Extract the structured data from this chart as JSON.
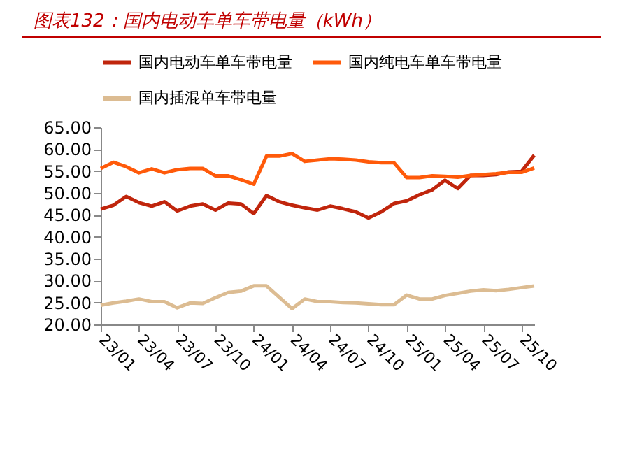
{
  "chart_data": {
    "type": "line",
    "title": "图表132：国内电动车单车带电量（kWh）",
    "categories": [
      "23/01",
      null,
      null,
      "23/04",
      null,
      null,
      "23/07",
      null,
      null,
      "23/10",
      null,
      null,
      "24/01",
      null,
      null,
      "24/04",
      null,
      null,
      "24/07",
      null,
      null,
      "24/10",
      null,
      null,
      "25/01",
      null,
      null,
      "25/04",
      null,
      null,
      "25/07",
      null,
      null,
      "25/10",
      null
    ],
    "series": [
      {
        "name": "国内电动车单车带电量",
        "color": "#c0250c",
        "values": [
          46.3,
          47.2,
          49.2,
          47.8,
          47.0,
          48.0,
          45.9,
          47.0,
          47.5,
          46.1,
          47.7,
          47.5,
          45.3,
          49.4,
          48.0,
          47.2,
          46.6,
          46.1,
          47.0,
          46.4,
          45.7,
          44.3,
          45.7,
          47.6,
          48.2,
          49.6,
          50.7,
          52.9,
          51.0,
          54.0,
          54.0,
          54.2,
          54.8,
          54.9,
          58.6
        ]
      },
      {
        "name": "国内纯电车单车带电量",
        "color": "#ff5a0a",
        "values": [
          55.6,
          57.0,
          56.0,
          54.6,
          55.5,
          54.6,
          55.3,
          55.6,
          55.6,
          53.9,
          53.9,
          53.0,
          52.0,
          58.4,
          58.4,
          59.0,
          57.2,
          57.5,
          57.8,
          57.7,
          57.5,
          57.1,
          56.9,
          56.9,
          53.5,
          53.5,
          53.9,
          53.8,
          53.6,
          54.0,
          54.2,
          54.4,
          54.7,
          54.7,
          55.7
        ]
      },
      {
        "name": "国内插混单车带电量",
        "color": "#dcbc92",
        "values": [
          24.4,
          24.9,
          25.3,
          25.8,
          25.2,
          25.2,
          23.8,
          24.9,
          24.8,
          26.1,
          27.3,
          27.6,
          28.8,
          28.8,
          26.2,
          23.6,
          25.8,
          25.2,
          25.2,
          25.0,
          24.9,
          24.7,
          24.5,
          24.5,
          26.7,
          25.8,
          25.8,
          26.6,
          27.1,
          27.6,
          27.9,
          27.7,
          28.0,
          28.4,
          28.8
        ]
      }
    ],
    "ylim": [
      20,
      65
    ],
    "yticks": [
      {
        "value": 20,
        "label": "20.00"
      },
      {
        "value": 25,
        "label": "25.00"
      },
      {
        "value": 30,
        "label": "30.00"
      },
      {
        "value": 35,
        "label": "35.00"
      },
      {
        "value": 40,
        "label": "40.00"
      },
      {
        "value": 45,
        "label": "45.00"
      },
      {
        "value": 50,
        "label": "50.00"
      },
      {
        "value": 55,
        "label": "55.00"
      },
      {
        "value": 60,
        "label": "60.00"
      },
      {
        "value": 65,
        "label": "65.00"
      }
    ],
    "grid": false,
    "legend": "top",
    "marker": "none",
    "line_style": "solid"
  }
}
